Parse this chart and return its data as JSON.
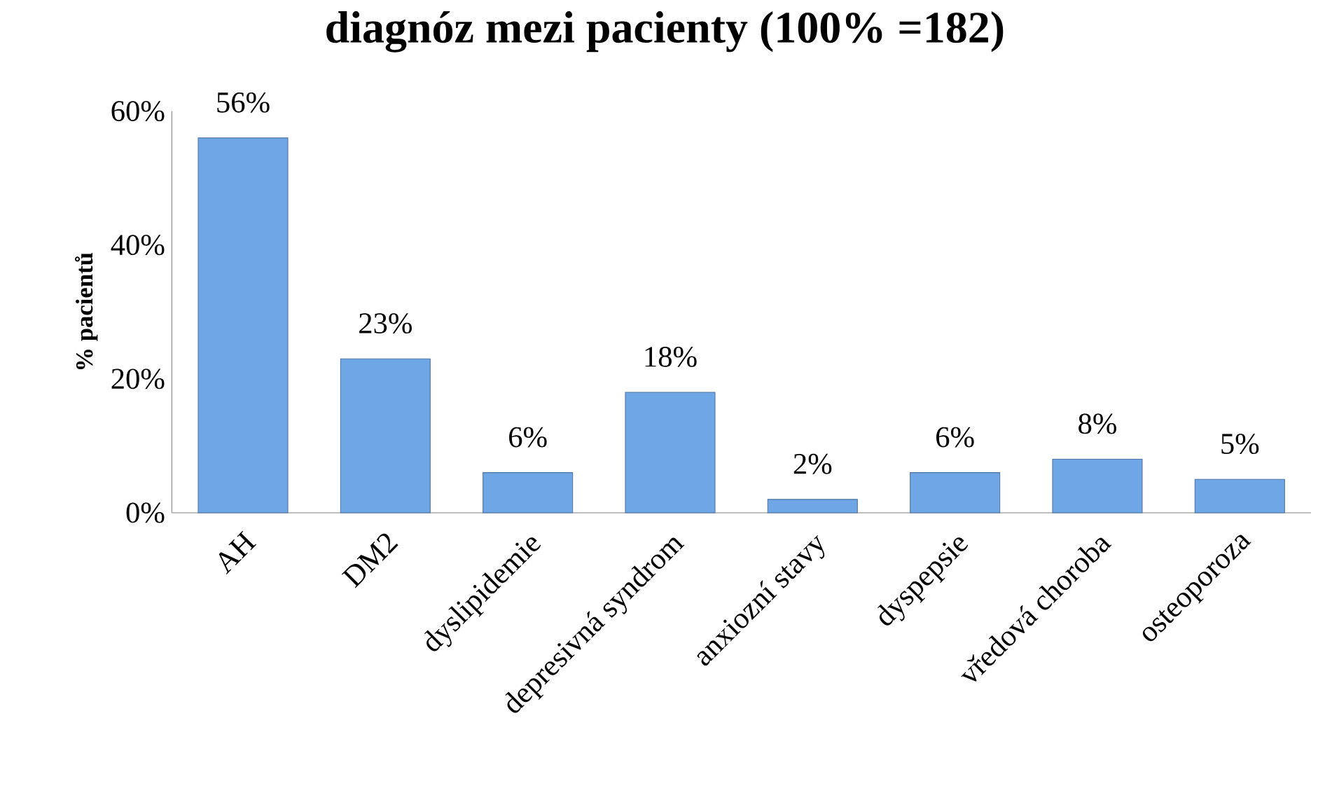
{
  "chart_data": {
    "type": "bar",
    "title": "diagnóz mezi pacienty (100% =182)",
    "ylabel": "% pacientů",
    "categories": [
      "AH",
      "DM2",
      "dyslipidemie",
      "depresivná syndrom",
      "anxiozní stavy",
      "dyspepsie",
      "vředová choroba",
      "osteoporoza"
    ],
    "values": [
      56,
      23,
      6,
      18,
      2,
      6,
      8,
      5
    ],
    "value_labels": [
      "56%",
      "23%",
      "6%",
      "18%",
      "2%",
      "6%",
      "8%",
      "5%"
    ],
    "color": "#6fa6e6",
    "ylim": [
      0,
      60
    ],
    "yticks": [
      {
        "value": 0,
        "label": "0%"
      },
      {
        "value": 20,
        "label": "20%"
      },
      {
        "value": 40,
        "label": "40%"
      },
      {
        "value": 60,
        "label": "60%"
      }
    ],
    "grid": false
  }
}
